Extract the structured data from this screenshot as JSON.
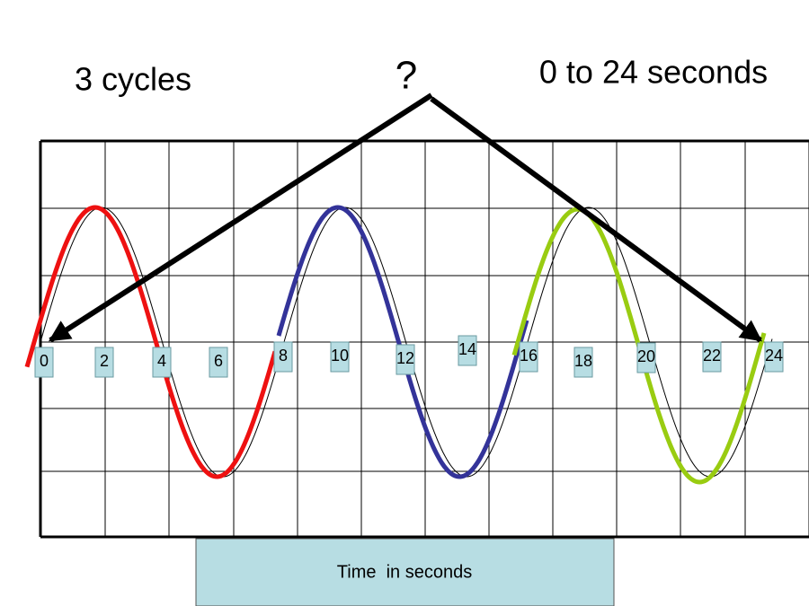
{
  "header": {
    "left": "3 cycles",
    "center": "?",
    "right": "0 to 24 seconds"
  },
  "time_labels": [
    "0",
    "2",
    "4",
    "6",
    "8",
    "10",
    "12",
    "14",
    "16",
    "18",
    "20",
    "22",
    "24"
  ],
  "caption": "Time  in seconds"
}
